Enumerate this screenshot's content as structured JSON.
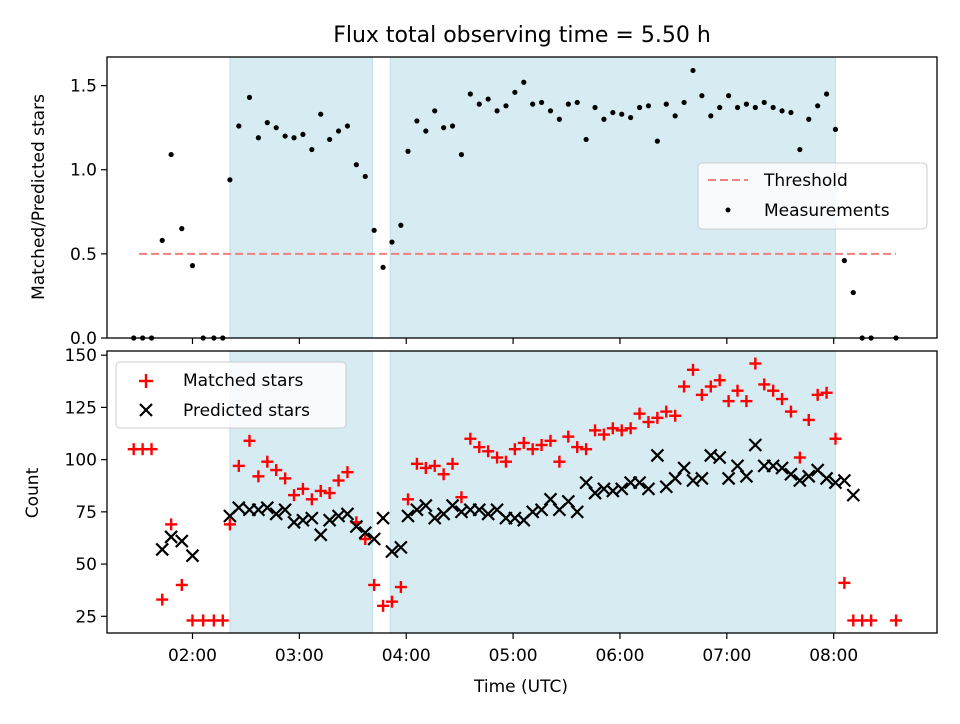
{
  "chart_data": [
    {
      "type": "scatter",
      "title": "Flux total observing time = 5.50 h",
      "xlabel": "",
      "ylabel": "Matched/Predicted stars",
      "xlim": [
        "01:12",
        "08:58"
      ],
      "ylim": [
        0,
        1.67
      ],
      "yticks": [
        "0.0",
        "0.5",
        "1.0",
        "1.5"
      ],
      "yticks_values": [
        0,
        0.5,
        1.0,
        1.5
      ],
      "xticks_values": [
        "02:00",
        "03:00",
        "04:00",
        "05:00",
        "06:00",
        "07:00",
        "08:00"
      ],
      "grid": false,
      "legend": {
        "placement": "right",
        "entries": [
          "Threshold",
          "Measurements"
        ]
      },
      "threshold": {
        "name": "Threshold",
        "value": 0.5,
        "x_start": "01:30",
        "x_end": "08:35",
        "color": "#f08080",
        "style": "dashed"
      },
      "shaded_intervals": [
        {
          "start": "02:21",
          "end": "03:41",
          "color": "#add8e6"
        },
        {
          "start": "03:51",
          "end": "08:01",
          "color": "#add8e6"
        }
      ],
      "series": [
        {
          "name": "Measurements",
          "color": "#000000",
          "points": [
            [
              "01:27",
              0
            ],
            [
              "01:32",
              0
            ],
            [
              "01:37",
              0
            ],
            [
              "01:43",
              0.58
            ],
            [
              "01:48",
              1.09
            ],
            [
              "01:54",
              0.65
            ],
            [
              "02:00",
              0.43
            ],
            [
              "02:06",
              0
            ],
            [
              "02:12",
              0
            ],
            [
              "02:17",
              0
            ],
            [
              "02:21",
              0.94
            ],
            [
              "02:26",
              1.26
            ],
            [
              "02:32",
              1.43
            ],
            [
              "02:37",
              1.19
            ],
            [
              "02:42",
              1.28
            ],
            [
              "02:47",
              1.25
            ],
            [
              "02:52",
              1.2
            ],
            [
              "02:57",
              1.19
            ],
            [
              "03:02",
              1.21
            ],
            [
              "03:07",
              1.12
            ],
            [
              "03:12",
              1.33
            ],
            [
              "03:17",
              1.18
            ],
            [
              "03:22",
              1.23
            ],
            [
              "03:27",
              1.26
            ],
            [
              "03:32",
              1.03
            ],
            [
              "03:37",
              0.96
            ],
            [
              "03:42",
              0.64
            ],
            [
              "03:47",
              0.42
            ],
            [
              "03:52",
              0.57
            ],
            [
              "03:57",
              0.67
            ],
            [
              "04:01",
              1.11
            ],
            [
              "04:06",
              1.29
            ],
            [
              "04:11",
              1.23
            ],
            [
              "04:16",
              1.35
            ],
            [
              "04:21",
              1.25
            ],
            [
              "04:26",
              1.26
            ],
            [
              "04:31",
              1.09
            ],
            [
              "04:36",
              1.45
            ],
            [
              "04:41",
              1.39
            ],
            [
              "04:46",
              1.42
            ],
            [
              "04:51",
              1.35
            ],
            [
              "04:56",
              1.38
            ],
            [
              "05:01",
              1.46
            ],
            [
              "05:06",
              1.52
            ],
            [
              "05:11",
              1.39
            ],
            [
              "05:16",
              1.4
            ],
            [
              "05:21",
              1.35
            ],
            [
              "05:26",
              1.3
            ],
            [
              "05:31",
              1.39
            ],
            [
              "05:36",
              1.4
            ],
            [
              "05:41",
              1.18
            ],
            [
              "05:46",
              1.37
            ],
            [
              "05:51",
              1.3
            ],
            [
              "05:56",
              1.34
            ],
            [
              "06:01",
              1.33
            ],
            [
              "06:06",
              1.31
            ],
            [
              "06:11",
              1.37
            ],
            [
              "06:16",
              1.38
            ],
            [
              "06:21",
              1.17
            ],
            [
              "06:26",
              1.39
            ],
            [
              "06:31",
              1.32
            ],
            [
              "06:36",
              1.4
            ],
            [
              "06:41",
              1.59
            ],
            [
              "06:46",
              1.44
            ],
            [
              "06:51",
              1.32
            ],
            [
              "06:56",
              1.37
            ],
            [
              "07:01",
              1.44
            ],
            [
              "07:06",
              1.37
            ],
            [
              "07:11",
              1.39
            ],
            [
              "07:16",
              1.37
            ],
            [
              "07:21",
              1.4
            ],
            [
              "07:26",
              1.37
            ],
            [
              "07:31",
              1.35
            ],
            [
              "07:36",
              1.34
            ],
            [
              "07:41",
              1.12
            ],
            [
              "07:46",
              1.3
            ],
            [
              "07:51",
              1.38
            ],
            [
              "07:56",
              1.45
            ],
            [
              "08:01",
              1.24
            ],
            [
              "08:06",
              0.46
            ],
            [
              "08:11",
              0.27
            ],
            [
              "08:16",
              0
            ],
            [
              "08:21",
              0
            ],
            [
              "08:35",
              0
            ]
          ]
        }
      ]
    },
    {
      "type": "scatter",
      "title": "",
      "xlabel": "Time (UTC)",
      "ylabel": "Count",
      "xlim": [
        "01:12",
        "08:58"
      ],
      "ylim": [
        17,
        152
      ],
      "yticks": [
        "25",
        "50",
        "75",
        "100",
        "125",
        "150"
      ],
      "yticks_values": [
        25,
        50,
        75,
        100,
        125,
        150
      ],
      "xticks": [
        "02:00",
        "03:00",
        "04:00",
        "05:00",
        "06:00",
        "07:00",
        "08:00"
      ],
      "grid": false,
      "legend": {
        "placement": "top-left",
        "entries": [
          "Matched stars",
          "Predicted stars"
        ]
      },
      "shaded_intervals": [
        {
          "start": "02:21",
          "end": "03:41",
          "color": "#add8e6"
        },
        {
          "start": "03:51",
          "end": "08:01",
          "color": "#add8e6"
        }
      ],
      "series": [
        {
          "name": "Matched stars",
          "color": "#ff0000",
          "marker": "plus",
          "points": [
            [
              "01:27",
              105
            ],
            [
              "01:32",
              105
            ],
            [
              "01:37",
              105
            ],
            [
              "01:43",
              33
            ],
            [
              "01:48",
              69
            ],
            [
              "01:54",
              40
            ],
            [
              "02:00",
              23
            ],
            [
              "02:06",
              23
            ],
            [
              "02:12",
              23
            ],
            [
              "02:17",
              23
            ],
            [
              "02:21",
              69
            ],
            [
              "02:26",
              97
            ],
            [
              "02:32",
              109
            ],
            [
              "02:37",
              92
            ],
            [
              "02:42",
              99
            ],
            [
              "02:47",
              95
            ],
            [
              "02:52",
              91
            ],
            [
              "02:57",
              83
            ],
            [
              "03:02",
              86
            ],
            [
              "03:07",
              81
            ],
            [
              "03:12",
              85
            ],
            [
              "03:17",
              84
            ],
            [
              "03:22",
              90
            ],
            [
              "03:27",
              94
            ],
            [
              "03:32",
              70
            ],
            [
              "03:37",
              62
            ],
            [
              "03:42",
              40
            ],
            [
              "03:47",
              30
            ],
            [
              "03:52",
              32
            ],
            [
              "03:57",
              39
            ],
            [
              "04:01",
              81
            ],
            [
              "04:06",
              98
            ],
            [
              "04:11",
              96
            ],
            [
              "04:16",
              97
            ],
            [
              "04:21",
              93
            ],
            [
              "04:26",
              98
            ],
            [
              "04:31",
              82
            ],
            [
              "04:36",
              110
            ],
            [
              "04:41",
              106
            ],
            [
              "04:46",
              104
            ],
            [
              "04:51",
              101
            ],
            [
              "04:56",
              99
            ],
            [
              "05:01",
              105
            ],
            [
              "05:06",
              108
            ],
            [
              "05:11",
              105
            ],
            [
              "05:16",
              107
            ],
            [
              "05:21",
              109
            ],
            [
              "05:26",
              99
            ],
            [
              "05:31",
              111
            ],
            [
              "05:36",
              106
            ],
            [
              "05:41",
              105
            ],
            [
              "05:46",
              114
            ],
            [
              "05:51",
              112
            ],
            [
              "05:56",
              115
            ],
            [
              "06:01",
              114
            ],
            [
              "06:06",
              115
            ],
            [
              "06:11",
              122
            ],
            [
              "06:16",
              118
            ],
            [
              "06:21",
              120
            ],
            [
              "06:26",
              123
            ],
            [
              "06:31",
              121
            ],
            [
              "06:36",
              135
            ],
            [
              "06:41",
              143
            ],
            [
              "06:46",
              131
            ],
            [
              "06:51",
              135
            ],
            [
              "06:56",
              138
            ],
            [
              "07:01",
              128
            ],
            [
              "07:06",
              133
            ],
            [
              "07:11",
              128
            ],
            [
              "07:16",
              146
            ],
            [
              "07:21",
              136
            ],
            [
              "07:26",
              133
            ],
            [
              "07:31",
              129
            ],
            [
              "07:36",
              123
            ],
            [
              "07:41",
              101
            ],
            [
              "07:46",
              119
            ],
            [
              "07:51",
              131
            ],
            [
              "07:56",
              132
            ],
            [
              "08:01",
              110
            ],
            [
              "08:06",
              41
            ],
            [
              "08:11",
              23
            ],
            [
              "08:16",
              23
            ],
            [
              "08:21",
              23
            ],
            [
              "08:35",
              23
            ]
          ]
        },
        {
          "name": "Predicted stars",
          "color": "#000000",
          "marker": "x",
          "points": [
            [
              "01:43",
              57
            ],
            [
              "01:48",
              63
            ],
            [
              "01:54",
              61
            ],
            [
              "02:00",
              54
            ],
            [
              "02:21",
              73
            ],
            [
              "02:26",
              77
            ],
            [
              "02:32",
              76
            ],
            [
              "02:37",
              76
            ],
            [
              "02:42",
              77
            ],
            [
              "02:47",
              74
            ],
            [
              "02:52",
              76
            ],
            [
              "02:57",
              70
            ],
            [
              "03:02",
              71
            ],
            [
              "03:07",
              72
            ],
            [
              "03:12",
              64
            ],
            [
              "03:17",
              71
            ],
            [
              "03:22",
              73
            ],
            [
              "03:27",
              74
            ],
            [
              "03:32",
              68
            ],
            [
              "03:37",
              65
            ],
            [
              "03:42",
              62
            ],
            [
              "03:47",
              72
            ],
            [
              "03:52",
              56
            ],
            [
              "03:57",
              58
            ],
            [
              "04:01",
              73
            ],
            [
              "04:06",
              76
            ],
            [
              "04:11",
              78
            ],
            [
              "04:16",
              72
            ],
            [
              "04:21",
              74
            ],
            [
              "04:26",
              78
            ],
            [
              "04:31",
              75
            ],
            [
              "04:36",
              76
            ],
            [
              "04:41",
              76
            ],
            [
              "04:46",
              74
            ],
            [
              "04:51",
              76
            ],
            [
              "04:56",
              72
            ],
            [
              "05:01",
              72
            ],
            [
              "05:06",
              71
            ],
            [
              "05:11",
              75
            ],
            [
              "05:16",
              76
            ],
            [
              "05:21",
              81
            ],
            [
              "05:26",
              76
            ],
            [
              "05:31",
              80
            ],
            [
              "05:36",
              75
            ],
            [
              "05:41",
              89
            ],
            [
              "05:46",
              84
            ],
            [
              "05:51",
              86
            ],
            [
              "05:56",
              85
            ],
            [
              "06:01",
              86
            ],
            [
              "06:06",
              89
            ],
            [
              "06:11",
              89
            ],
            [
              "06:16",
              86
            ],
            [
              "06:21",
              102
            ],
            [
              "06:26",
              87
            ],
            [
              "06:31",
              91
            ],
            [
              "06:36",
              96
            ],
            [
              "06:41",
              90
            ],
            [
              "06:46",
              91
            ],
            [
              "06:51",
              102
            ],
            [
              "06:56",
              101
            ],
            [
              "07:01",
              91
            ],
            [
              "07:06",
              97
            ],
            [
              "07:11",
              92
            ],
            [
              "07:16",
              107
            ],
            [
              "07:21",
              97
            ],
            [
              "07:26",
              97
            ],
            [
              "07:31",
              96
            ],
            [
              "07:36",
              93
            ],
            [
              "07:41",
              90
            ],
            [
              "07:46",
              92
            ],
            [
              "07:51",
              95
            ],
            [
              "07:56",
              91
            ],
            [
              "08:01",
              89
            ],
            [
              "08:06",
              90
            ],
            [
              "08:11",
              83
            ]
          ]
        }
      ]
    }
  ]
}
